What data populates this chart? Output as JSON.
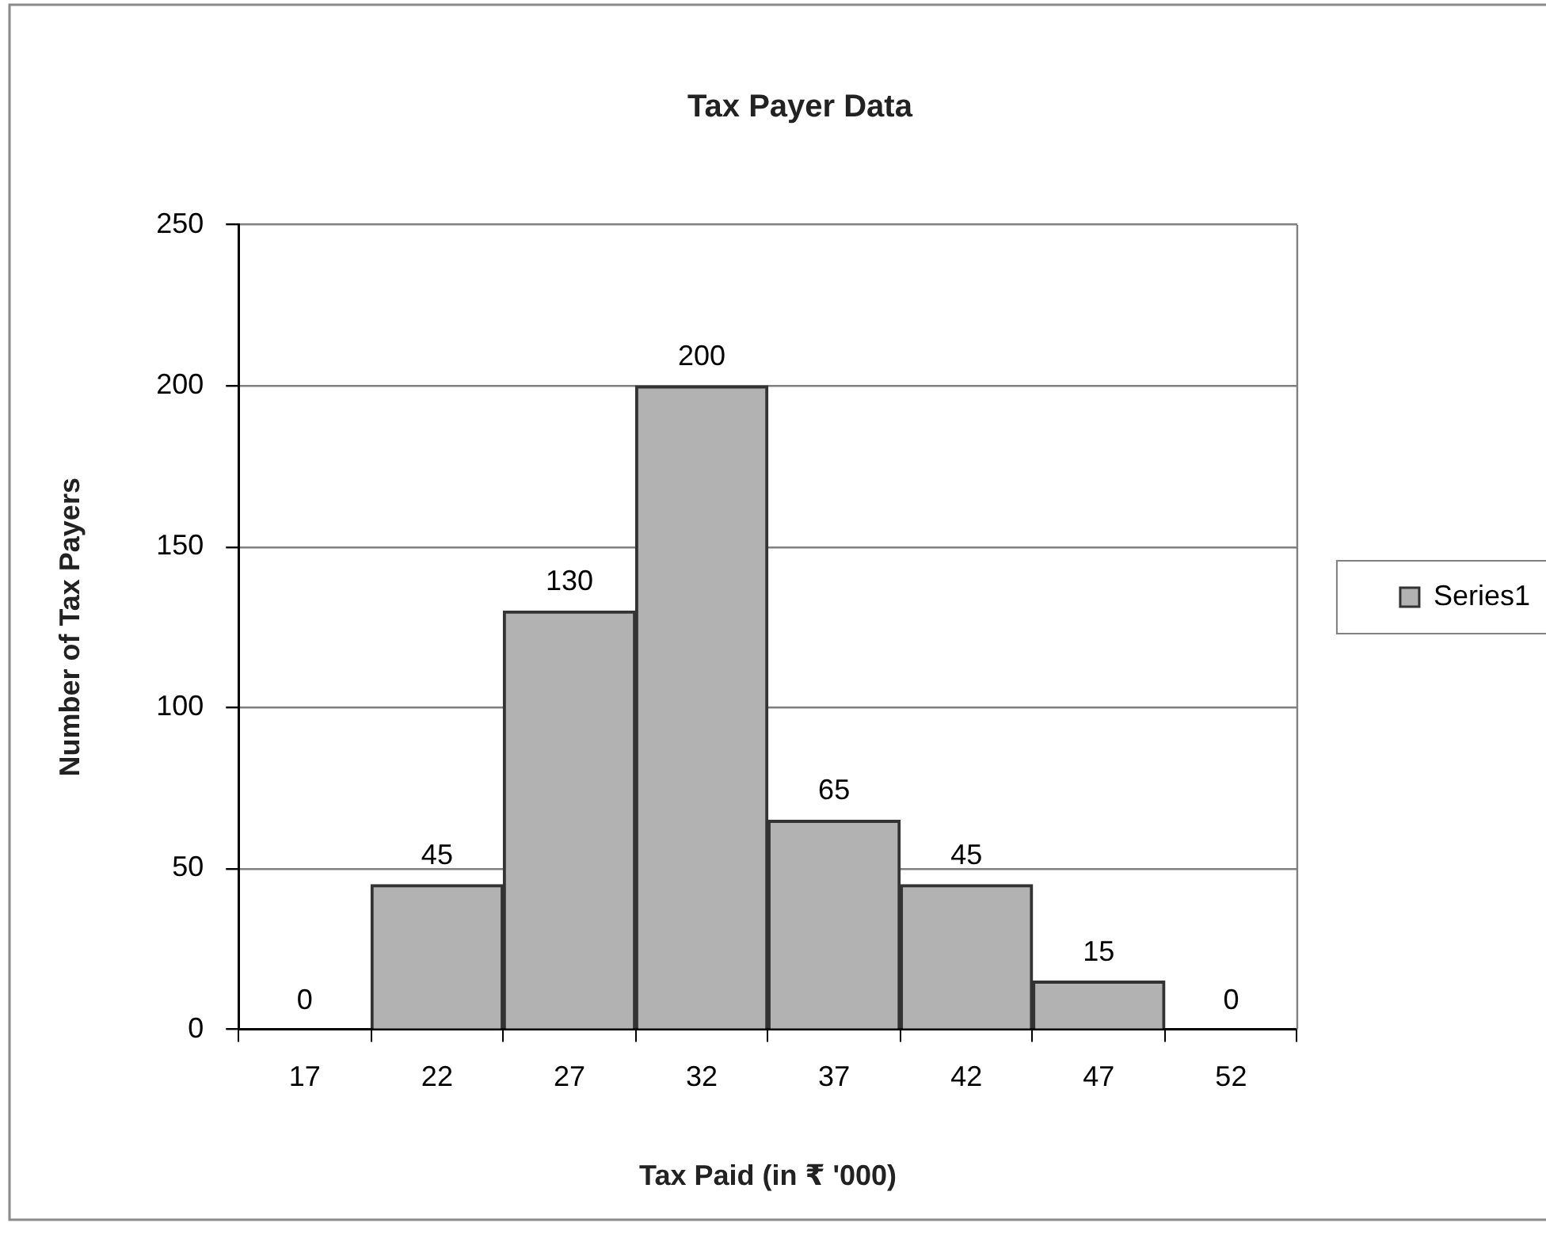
{
  "chart_data": {
    "type": "bar",
    "title": "Tax Payer Data",
    "xlabel": "Tax Paid (in ₹ '000)",
    "ylabel": "Number of Tax Payers",
    "categories": [
      "17",
      "22",
      "27",
      "32",
      "37",
      "42",
      "47",
      "52"
    ],
    "series": [
      {
        "name": "Series1",
        "color": "#b2b2b2",
        "values": [
          0,
          45,
          130,
          200,
          65,
          45,
          15,
          0
        ]
      }
    ],
    "ylim": [
      0,
      250
    ],
    "yticks": [
      0,
      50,
      100,
      150,
      200,
      250
    ],
    "grid": "y",
    "legend": "right",
    "data_labels": true
  }
}
